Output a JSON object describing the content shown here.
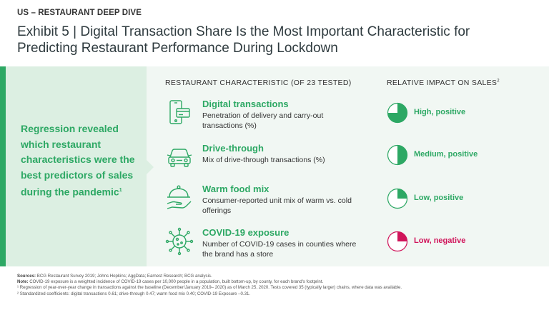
{
  "header": {
    "eyebrow": "US – RESTAURANT DEEP DIVE",
    "title": "Exhibit 5 | Digital Transaction Share Is the Most Important Characteristic for Predicting Restaurant Performance During Lockdown"
  },
  "callout": {
    "text": "Regression revealed which restaurant characteristics were the best predictors of sales during the pandemic",
    "footnote_mark": "1"
  },
  "columns": {
    "characteristic": "RESTAURANT CHARACTERISTIC (OF 23 TESTED)",
    "impact": "RELATIVE IMPACT ON SALES",
    "impact_mark": "2"
  },
  "colors": {
    "green": "#2da864",
    "red": "#d0145a",
    "band": "#f1f7f3",
    "band_left": "#dcefe2"
  },
  "items": [
    {
      "name": "Digital transactions",
      "description": "Penetration of delivery and carry-out transactions (%)",
      "icon": "smartphone-card-icon",
      "impact_label": "High, positive",
      "impact_fraction": 0.75,
      "impact_color": "#2da864"
    },
    {
      "name": "Drive-through",
      "description": "Mix of drive-through transactions (%)",
      "icon": "car-icon",
      "impact_label": "Medium, positive",
      "impact_fraction": 0.5,
      "impact_color": "#2da864"
    },
    {
      "name": "Warm food mix",
      "description": "Consumer-reported unit mix of warm vs. cold offerings",
      "icon": "serving-cloche-icon",
      "impact_label": "Low, positive",
      "impact_fraction": 0.25,
      "impact_color": "#2da864"
    },
    {
      "name": "COVID-19 exposure",
      "description": "Number of COVID-19 cases in counties where the brand has a store",
      "icon": "virus-icon",
      "impact_label": "Low, negative",
      "impact_fraction": 0.25,
      "impact_color": "#d0145a"
    }
  ],
  "notes": {
    "sources_label": "Sources:",
    "sources": "BCG Restaurant Survey 2019; Johns Hopkins; AggData; Earnest Research; BCG analysis.",
    "note_label": "Note:",
    "note": "COVID-19 exposure is a weighted incidence of COVID-19 cases per 10,000 people in a population, built bottom-up, by county, for each brand's footprint.",
    "footnote1": "¹ Regression of year-over-year change in transactions against the baseline (December/January 2019– 2020) as of March 25, 2020. Tests covered 35 (typically larger) chains, where data was available.",
    "footnote2": "² Standardized coefficients: digital transactions 0.61; drive-through 0.47; warm food mix 0.40; COVID-19 Exposure –0.31."
  }
}
